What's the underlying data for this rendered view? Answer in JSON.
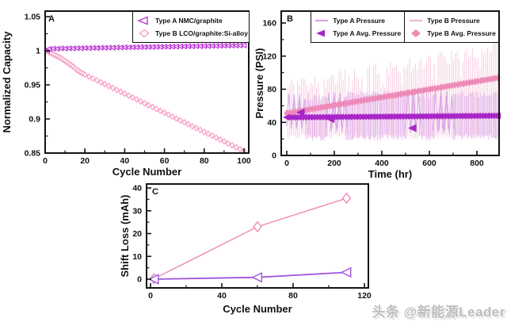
{
  "watermark": {
    "text": "头条 @新能源Leader"
  },
  "colors": {
    "type_a": "#b935d2",
    "type_a_light": "#d9a3e8",
    "type_a_avg": "#a826c8",
    "type_b": "#f79ec6",
    "type_b_light": "#f6c3d9",
    "type_b_line": "#f4b3cf",
    "type_b_avg": "#ee8ab8",
    "type_c_a": "#a155dd",
    "axis": "#141414",
    "watermark_gray": "#bdbdbd"
  },
  "chart_data": [
    {
      "id": "A",
      "panel_label": "A",
      "type": "scatter",
      "xlabel": "Cycle Number",
      "ylabel": "Normalized Capacity",
      "xlim": [
        0,
        100
      ],
      "ylim": [
        0.85,
        1.058
      ],
      "xticks": [
        0,
        20,
        40,
        60,
        80,
        100
      ],
      "xtick_labels": [
        "0",
        "20",
        "40",
        "60",
        "80",
        "100"
      ],
      "xticks_minor": [
        10,
        30,
        50,
        70,
        90
      ],
      "yticks": [
        0.85,
        0.9,
        0.95,
        1,
        1.05
      ],
      "ytick_labels": [
        "0.85",
        "0.9",
        "0.95",
        "1",
        "1.05"
      ],
      "yticks_minor": [
        0.875,
        0.925,
        0.975,
        1.025
      ],
      "grid": false,
      "legend": {
        "position": "top-right",
        "entries": [
          {
            "label": "Type A NMC/graphite",
            "marker": "triangle-left-open",
            "color_key": "type_a"
          },
          {
            "label": "Type B LCO/graphite:Si-alloy",
            "marker": "diamond-open",
            "color_key": "type_b"
          }
        ]
      },
      "series": [
        {
          "name": "Type B LCO/graphite:Si-alloy",
          "marker": "diamond-open",
          "color_key": "type_b",
          "points": [
            [
              1,
              1.0
            ],
            [
              2,
              0.998
            ],
            [
              3,
              0.9965
            ],
            [
              4,
              0.995
            ],
            [
              5,
              0.9935
            ],
            [
              6,
              0.992
            ],
            [
              7,
              0.9905
            ],
            [
              8,
              0.989
            ],
            [
              9,
              0.987
            ],
            [
              10,
              0.985
            ],
            [
              11,
              0.983
            ],
            [
              12,
              0.981
            ],
            [
              13,
              0.979
            ],
            [
              14,
              0.977
            ],
            [
              15,
              0.9745
            ],
            [
              16,
              0.972
            ],
            [
              17,
              0.97
            ],
            [
              18,
              0.968
            ],
            [
              19,
              0.9665
            ],
            [
              20,
              0.965
            ],
            [
              22,
              0.9622
            ],
            [
              24,
              0.9594
            ],
            [
              26,
              0.9566
            ],
            [
              28,
              0.9538
            ],
            [
              30,
              0.951
            ],
            [
              32,
              0.9482
            ],
            [
              34,
              0.9454
            ],
            [
              36,
              0.9426
            ],
            [
              38,
              0.9398
            ],
            [
              40,
              0.937
            ],
            [
              42,
              0.9342
            ],
            [
              44,
              0.9314
            ],
            [
              46,
              0.9286
            ],
            [
              48,
              0.9258
            ],
            [
              50,
              0.923
            ],
            [
              52,
              0.9202
            ],
            [
              54,
              0.9174
            ],
            [
              56,
              0.9146
            ],
            [
              58,
              0.9118
            ],
            [
              60,
              0.909
            ],
            [
              62,
              0.9062
            ],
            [
              64,
              0.9034
            ],
            [
              66,
              0.9006
            ],
            [
              68,
              0.8978
            ],
            [
              70,
              0.895
            ],
            [
              72,
              0.8922
            ],
            [
              74,
              0.8894
            ],
            [
              76,
              0.8866
            ],
            [
              78,
              0.8838
            ],
            [
              80,
              0.881
            ],
            [
              82,
              0.8782
            ],
            [
              84,
              0.8754
            ],
            [
              86,
              0.8726
            ],
            [
              88,
              0.8698
            ],
            [
              90,
              0.867
            ],
            [
              92,
              0.8642
            ],
            [
              94,
              0.8614
            ],
            [
              96,
              0.8586
            ],
            [
              98,
              0.8558
            ],
            [
              100,
              0.853
            ]
          ]
        },
        {
          "name": "Type A NMC/graphite",
          "marker": "triangle-left-open",
          "color_key": "type_a",
          "points": [
            [
              1,
              1.0005
            ],
            [
              2,
              1.0028
            ],
            [
              4,
              1.0032
            ],
            [
              6,
              1.003
            ],
            [
              8,
              1.0034
            ],
            [
              10,
              1.0033
            ],
            [
              12,
              1.0036
            ],
            [
              14,
              1.0035
            ],
            [
              16,
              1.0038
            ],
            [
              18,
              1.0037
            ],
            [
              20,
              1.004
            ],
            [
              22,
              1.0039
            ],
            [
              24,
              1.0042
            ],
            [
              26,
              1.0041
            ],
            [
              28,
              1.0044
            ],
            [
              30,
              1.0043
            ],
            [
              32,
              1.0046
            ],
            [
              34,
              1.0045
            ],
            [
              36,
              1.0048
            ],
            [
              38,
              1.0047
            ],
            [
              40,
              1.005
            ],
            [
              42,
              1.0049
            ],
            [
              44,
              1.0052
            ],
            [
              46,
              1.0051
            ],
            [
              48,
              1.0054
            ],
            [
              50,
              1.0053
            ],
            [
              52,
              1.0056
            ],
            [
              54,
              1.0055
            ],
            [
              56,
              1.0058
            ],
            [
              58,
              1.0057
            ],
            [
              60,
              1.006
            ],
            [
              62,
              1.0059
            ],
            [
              64,
              1.0062
            ],
            [
              66,
              1.0061
            ],
            [
              68,
              1.0064
            ],
            [
              70,
              1.0063
            ],
            [
              72,
              1.0066
            ],
            [
              74,
              1.0065
            ],
            [
              76,
              1.0068
            ],
            [
              78,
              1.0067
            ],
            [
              80,
              1.007
            ],
            [
              82,
              1.0069
            ],
            [
              84,
              1.0072
            ],
            [
              86,
              1.0071
            ],
            [
              88,
              1.0074
            ],
            [
              90,
              1.0073
            ],
            [
              92,
              1.0076
            ],
            [
              94,
              1.0075
            ],
            [
              96,
              1.0078
            ],
            [
              98,
              1.0077
            ],
            [
              100,
              1.008
            ]
          ]
        }
      ]
    },
    {
      "id": "B",
      "panel_label": "B",
      "type": "line",
      "xlabel": "Time (hr)",
      "ylabel": "Pressure (PSI)",
      "xlim": [
        0,
        893
      ],
      "ylim": [
        0,
        160
      ],
      "xticks": [
        0,
        200,
        400,
        600,
        800
      ],
      "xtick_labels": [
        "0",
        "200",
        "400",
        "600",
        "800"
      ],
      "xticks_minor": [
        100,
        300,
        500,
        700
      ],
      "yticks": [
        0,
        40,
        80,
        120,
        160
      ],
      "ytick_labels": [
        "0",
        "40",
        "80",
        "120",
        "160"
      ],
      "yticks_minor": [
        20,
        60,
        100,
        140
      ],
      "grid": false,
      "legend": {
        "position": "top",
        "columns": [
          [
            {
              "label": "Type A Pressure",
              "marker": "line",
              "color_key": "type_a_light"
            },
            {
              "label": "Type A Avg. Pressure",
              "marker": "triangle-left-filled",
              "color_key": "type_a_avg"
            }
          ],
          [
            {
              "label": "Type B Pressure",
              "marker": "line",
              "color_key": "type_b_line"
            },
            {
              "label": "Type B Avg. Pressure",
              "marker": "diamond-filled",
              "color_key": "type_b_avg"
            }
          ]
        ]
      },
      "series": [
        {
          "name": "Type B Pressure",
          "kind": "oscillation",
          "color_key": "type_b_light",
          "segments": [
            {
              "t0": 5,
              "t1": 890,
              "min": 20,
              "max_start": 92,
              "max_end": 138,
              "style": "dense"
            }
          ]
        },
        {
          "name": "Type A Pressure",
          "kind": "oscillation",
          "color_key": "type_a_light",
          "segments": [
            {
              "t0": 8,
              "t1": 75,
              "min": 28,
              "max": 74,
              "style": "spikes"
            },
            {
              "t0": 78,
              "t1": 170,
              "min": 18,
              "max": 74,
              "style": "dense"
            },
            {
              "t0": 174,
              "t1": 246,
              "min": 25,
              "max": 76,
              "style": "spikes"
            },
            {
              "t0": 250,
              "t1": 504,
              "min": 18,
              "max": 79,
              "style": "dense"
            },
            {
              "t0": 508,
              "t1": 556,
              "min": 24,
              "max": 80,
              "style": "spikes"
            },
            {
              "t0": 558,
              "t1": 620,
              "min": 18,
              "max": 76,
              "style": "dense"
            },
            {
              "t0": 624,
              "t1": 696,
              "min": 22,
              "max": 78,
              "style": "spikes"
            },
            {
              "t0": 700,
              "t1": 890,
              "min": 18,
              "max": 78,
              "style": "dense"
            }
          ]
        },
        {
          "name": "Type B Avg. Pressure",
          "kind": "average",
          "marker": "diamond-filled",
          "color_key": "type_b_avg",
          "points": [
            [
              0,
              51
            ],
            [
              893,
              94
            ]
          ],
          "outliers": []
        },
        {
          "name": "Type A Avg. Pressure",
          "kind": "average",
          "marker": "triangle-left-filled",
          "color_key": "type_a_avg",
          "points": [
            [
              0,
              46
            ],
            [
              893,
              48
            ]
          ],
          "outliers": [
            [
              60,
              52
            ],
            [
              185,
              44
            ],
            [
              530,
              33
            ]
          ]
        }
      ]
    },
    {
      "id": "C",
      "panel_label": "C",
      "type": "line",
      "xlabel": "Cycle Number",
      "ylabel": "Shift Loss (mAh)",
      "xlim": [
        0,
        122
      ],
      "ylim": [
        -2,
        40
      ],
      "xticks": [
        0,
        40,
        80,
        120
      ],
      "xtick_labels": [
        "0",
        "40",
        "80",
        "120"
      ],
      "xticks_minor": [
        20,
        60,
        100
      ],
      "yticks": [
        0,
        10,
        20,
        30,
        40
      ],
      "ytick_labels": [
        "0",
        "10",
        "20",
        "30",
        "40"
      ],
      "yticks_minor": [
        5,
        15,
        25,
        35
      ],
      "grid": false,
      "series": [
        {
          "name": "Type B",
          "marker": "diamond-open",
          "color_key": "type_b_avg",
          "points": [
            [
              2,
              0.2
            ],
            [
              60,
              23
            ],
            [
              110,
              35.5
            ]
          ]
        },
        {
          "name": "Type A",
          "marker": "triangle-left-open",
          "color_key": "type_c_a",
          "points": [
            [
              2,
              0
            ],
            [
              60,
              0.8
            ],
            [
              110,
              3
            ]
          ]
        }
      ]
    }
  ]
}
